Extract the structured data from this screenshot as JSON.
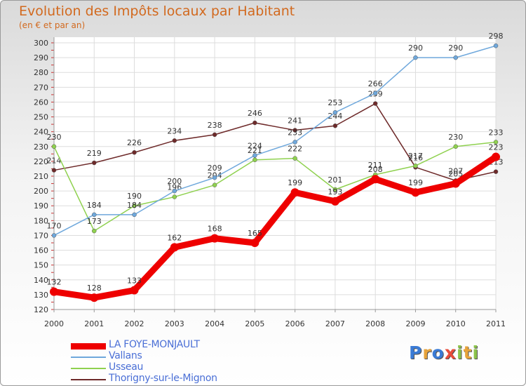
{
  "title": "Evolution des Impôts locaux par Habitant",
  "subtitle": "(en € et par an)",
  "brand": {
    "letters": [
      "P",
      "r",
      "o",
      "x",
      "i",
      "t",
      "i"
    ],
    "colors": [
      "#3a7bd5",
      "#e8a33a",
      "#3a7bd5",
      "#e84c3a",
      "#8bc34a",
      "#e8a33a",
      "#8bc34a"
    ]
  },
  "chart_data": {
    "type": "line",
    "title": "Evolution des Impôts locaux par Habitant",
    "subtitle": "(en € et par an)",
    "xlabel": "",
    "ylabel": "",
    "x": [
      "2000",
      "2001",
      "2002",
      "2003",
      "2004",
      "2005",
      "2006",
      "2007",
      "2008",
      "2009",
      "2010",
      "2011"
    ],
    "ylim": [
      120,
      300
    ],
    "yticks": [
      120,
      130,
      140,
      150,
      160,
      170,
      180,
      190,
      200,
      210,
      220,
      230,
      240,
      250,
      260,
      270,
      280,
      290,
      300
    ],
    "grid": true,
    "legend": "bottom-left",
    "series": [
      {
        "name": "Thorigny-sur-le-Mignon",
        "color": "#6e2a2a",
        "width": 1.5,
        "values": [
          214,
          219,
          226,
          234,
          238,
          246,
          241,
          244,
          259,
          216,
          207,
          213
        ]
      },
      {
        "name": "Usseau",
        "color": "#8fd14f",
        "width": 1.5,
        "values": [
          230,
          173,
          190,
          196,
          204,
          221,
          222,
          201,
          211,
          217,
          230,
          233
        ]
      },
      {
        "name": "Vallans",
        "color": "#6fa8dc",
        "width": 1.5,
        "values": [
          170,
          184,
          184,
          200,
          209,
          224,
          233,
          253,
          266,
          290,
          290,
          298
        ]
      },
      {
        "name": "LA FOYE-MONJAULT",
        "color": "#ee0000",
        "width": 9,
        "values": [
          132,
          128,
          133,
          162,
          168,
          165,
          199,
          193,
          208,
          199,
          205,
          223
        ]
      }
    ],
    "legend_order": [
      "LA FOYE-MONJAULT",
      "Vallans",
      "Usseau",
      "Thorigny-sur-le-Mignon"
    ]
  }
}
